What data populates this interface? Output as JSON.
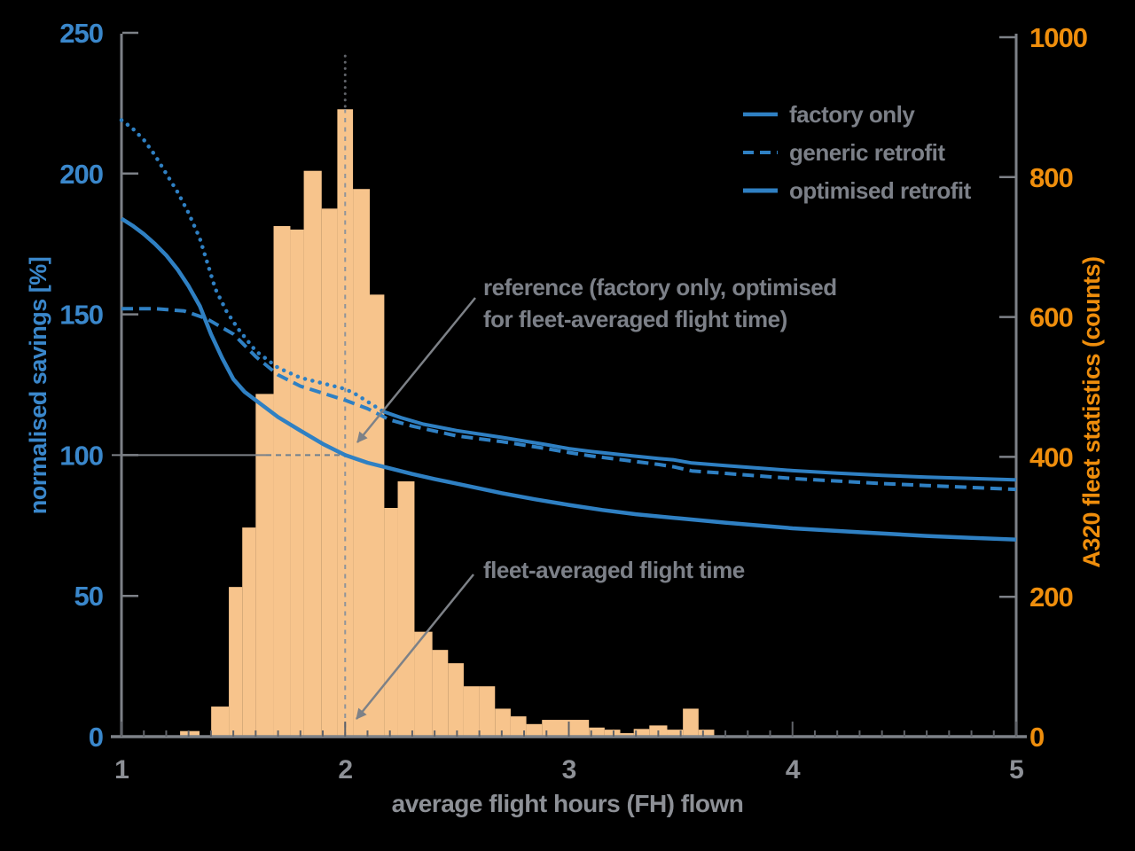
{
  "figure": {
    "background": "#000000",
    "axis_color": "#7d8187",
    "tick_color": "#606369"
  },
  "legend": {
    "items": [
      {
        "label": "factory only",
        "style": "solid"
      },
      {
        "label": "generic retrofit",
        "style": "dashed"
      },
      {
        "label": "optimised retrofit",
        "style": "solid-thick"
      }
    ]
  },
  "annotations": {
    "reference_line1": "reference (factory only, optimised",
    "reference_line2": "for fleet-averaged flight time)",
    "fleet_avg": "fleet-averaged flight time"
  },
  "chart_data": {
    "type": "composite",
    "title": "",
    "x_axis": {
      "label": "average flight hours (FH) flown",
      "range": [
        1,
        5
      ],
      "major_ticks": [
        1,
        2,
        3,
        4,
        5
      ],
      "minor_tick_step": 0.1
    },
    "y_axis_left": {
      "label": "normalised savings [%]",
      "range": [
        0,
        250
      ],
      "ticks": [
        0,
        50,
        100,
        150,
        200,
        250
      ],
      "color": "#3a87cb"
    },
    "y_axis_right": {
      "label": "A320 fleet statistics (counts)",
      "range": [
        0,
        1000
      ],
      "ticks": [
        0,
        200,
        400,
        600,
        800,
        1000
      ],
      "color": "#ef8e0c"
    },
    "histogram": {
      "name": "A320 fleet statistics",
      "fill": "#f7c48c",
      "bars": [
        {
          "x0": 1.262,
          "x1": 1.349,
          "count": 8
        },
        {
          "x0": 1.401,
          "x1": 1.48,
          "count": 43
        },
        {
          "x0": 1.48,
          "x1": 1.54,
          "count": 214
        },
        {
          "x0": 1.54,
          "x1": 1.6,
          "count": 299
        },
        {
          "x0": 1.6,
          "x1": 1.68,
          "count": 490
        },
        {
          "x0": 1.68,
          "x1": 1.755,
          "count": 730
        },
        {
          "x0": 1.755,
          "x1": 1.815,
          "count": 725
        },
        {
          "x0": 1.815,
          "x1": 1.895,
          "count": 809
        },
        {
          "x0": 1.895,
          "x1": 1.965,
          "count": 755
        },
        {
          "x0": 1.965,
          "x1": 2.035,
          "count": 897
        },
        {
          "x0": 2.035,
          "x1": 2.11,
          "count": 783
        },
        {
          "x0": 2.11,
          "x1": 2.175,
          "count": 632
        },
        {
          "x0": 2.175,
          "x1": 2.235,
          "count": 327
        },
        {
          "x0": 2.235,
          "x1": 2.31,
          "count": 365
        },
        {
          "x0": 2.31,
          "x1": 2.39,
          "count": 150
        },
        {
          "x0": 2.39,
          "x1": 2.46,
          "count": 124
        },
        {
          "x0": 2.46,
          "x1": 2.53,
          "count": 105
        },
        {
          "x0": 2.53,
          "x1": 2.6,
          "count": 72
        },
        {
          "x0": 2.6,
          "x1": 2.67,
          "count": 72
        },
        {
          "x0": 2.67,
          "x1": 2.74,
          "count": 40
        },
        {
          "x0": 2.74,
          "x1": 2.81,
          "count": 29
        },
        {
          "x0": 2.81,
          "x1": 2.88,
          "count": 18
        },
        {
          "x0": 2.88,
          "x1": 3.09,
          "count": 24
        },
        {
          "x0": 3.09,
          "x1": 3.16,
          "count": 13
        },
        {
          "x0": 3.16,
          "x1": 3.23,
          "count": 10
        },
        {
          "x0": 3.23,
          "x1": 3.29,
          "count": 5
        },
        {
          "x0": 3.29,
          "x1": 3.36,
          "count": 11
        },
        {
          "x0": 3.36,
          "x1": 3.44,
          "count": 16
        },
        {
          "x0": 3.44,
          "x1": 3.51,
          "count": 10
        },
        {
          "x0": 3.51,
          "x1": 3.58,
          "count": 40
        },
        {
          "x0": 3.58,
          "x1": 3.65,
          "count": 10
        }
      ]
    },
    "series": [
      {
        "name": "optimised retrofit (low-FH segment)",
        "style": "dotted",
        "color": "#2f80c3",
        "width": 4.5,
        "points": [
          [
            1.0,
            219
          ],
          [
            1.05,
            216
          ],
          [
            1.1,
            212
          ],
          [
            1.15,
            206.5
          ],
          [
            1.2,
            200
          ],
          [
            1.25,
            193.5
          ],
          [
            1.3,
            186
          ],
          [
            1.35,
            177
          ],
          [
            1.42,
            159
          ],
          [
            1.47,
            151
          ],
          [
            1.52,
            145
          ],
          [
            1.6,
            137
          ],
          [
            1.7,
            131
          ],
          [
            1.8,
            127.5
          ],
          [
            1.9,
            125.5
          ],
          [
            2.0,
            123.5
          ],
          [
            2.05,
            121.5
          ],
          [
            2.1,
            119
          ],
          [
            2.17,
            115.5
          ]
        ]
      },
      {
        "name": "optimised retrofit",
        "style": "solid",
        "color": "#2f80c3",
        "width": 4,
        "points": [
          [
            2.17,
            115.5
          ],
          [
            2.25,
            113.3
          ],
          [
            2.35,
            111
          ],
          [
            2.5,
            108.7
          ],
          [
            2.7,
            106.3
          ],
          [
            2.9,
            103.7
          ],
          [
            3.0,
            102.3
          ],
          [
            3.1,
            101.3
          ],
          [
            3.25,
            100
          ],
          [
            3.4,
            98.8
          ],
          [
            3.47,
            98.3
          ],
          [
            3.55,
            97.2
          ],
          [
            3.7,
            96.3
          ],
          [
            3.9,
            95.1
          ],
          [
            4.0,
            94.5
          ],
          [
            4.2,
            93.6
          ],
          [
            4.4,
            92.8
          ],
          [
            4.6,
            92.2
          ],
          [
            4.8,
            91.7
          ],
          [
            5.0,
            91.2
          ]
        ]
      },
      {
        "name": "generic retrofit",
        "style": "dashed",
        "color": "#2f80c3",
        "width": 4,
        "points": [
          [
            1.0,
            152
          ],
          [
            1.15,
            152
          ],
          [
            1.28,
            151.2
          ],
          [
            1.38,
            148.5
          ],
          [
            1.5,
            143
          ],
          [
            1.6,
            135
          ],
          [
            1.7,
            128.5
          ],
          [
            1.8,
            124.5
          ],
          [
            1.9,
            122
          ],
          [
            2.0,
            119.5
          ],
          [
            2.1,
            116.5
          ],
          [
            2.2,
            112.5
          ],
          [
            2.3,
            110.3
          ],
          [
            2.5,
            106.8
          ],
          [
            2.7,
            104.8
          ],
          [
            2.9,
            102.3
          ],
          [
            3.0,
            100.9
          ],
          [
            3.1,
            99.7
          ],
          [
            3.25,
            98.2
          ],
          [
            3.4,
            96.7
          ],
          [
            3.47,
            95.8
          ],
          [
            3.55,
            94.4
          ],
          [
            3.7,
            93.5
          ],
          [
            3.9,
            92.3
          ],
          [
            4.0,
            91.7
          ],
          [
            4.2,
            90.8
          ],
          [
            4.4,
            89.9
          ],
          [
            4.6,
            89.2
          ],
          [
            4.8,
            88.5
          ],
          [
            5.0,
            87.8
          ]
        ]
      },
      {
        "name": "factory only",
        "style": "solid",
        "color": "#2f80c3",
        "width": 4.5,
        "points": [
          [
            1.0,
            184
          ],
          [
            1.05,
            181.5
          ],
          [
            1.1,
            178.5
          ],
          [
            1.15,
            175
          ],
          [
            1.2,
            171
          ],
          [
            1.25,
            166
          ],
          [
            1.3,
            160
          ],
          [
            1.35,
            153
          ],
          [
            1.4,
            143
          ],
          [
            1.45,
            134.5
          ],
          [
            1.5,
            127
          ],
          [
            1.55,
            122.5
          ],
          [
            1.6,
            119.5
          ],
          [
            1.7,
            113.5
          ],
          [
            1.8,
            108.7
          ],
          [
            1.9,
            104
          ],
          [
            2.0,
            100
          ],
          [
            2.1,
            97.3
          ],
          [
            2.2,
            95.3
          ],
          [
            2.3,
            93.3
          ],
          [
            2.4,
            91.5
          ],
          [
            2.55,
            89
          ],
          [
            2.7,
            86.5
          ],
          [
            2.85,
            84.3
          ],
          [
            3.0,
            82.3
          ],
          [
            3.15,
            80.5
          ],
          [
            3.3,
            79
          ],
          [
            3.5,
            77.5
          ],
          [
            3.7,
            76
          ],
          [
            4.0,
            74
          ],
          [
            4.3,
            72.6
          ],
          [
            4.6,
            71.3
          ],
          [
            4.8,
            70.6
          ],
          [
            5.0,
            70
          ]
        ]
      }
    ],
    "reference_marks": {
      "vertical_line_x": 2,
      "horizontal_line_y": 100,
      "reference_point": [
        2,
        100
      ]
    }
  }
}
